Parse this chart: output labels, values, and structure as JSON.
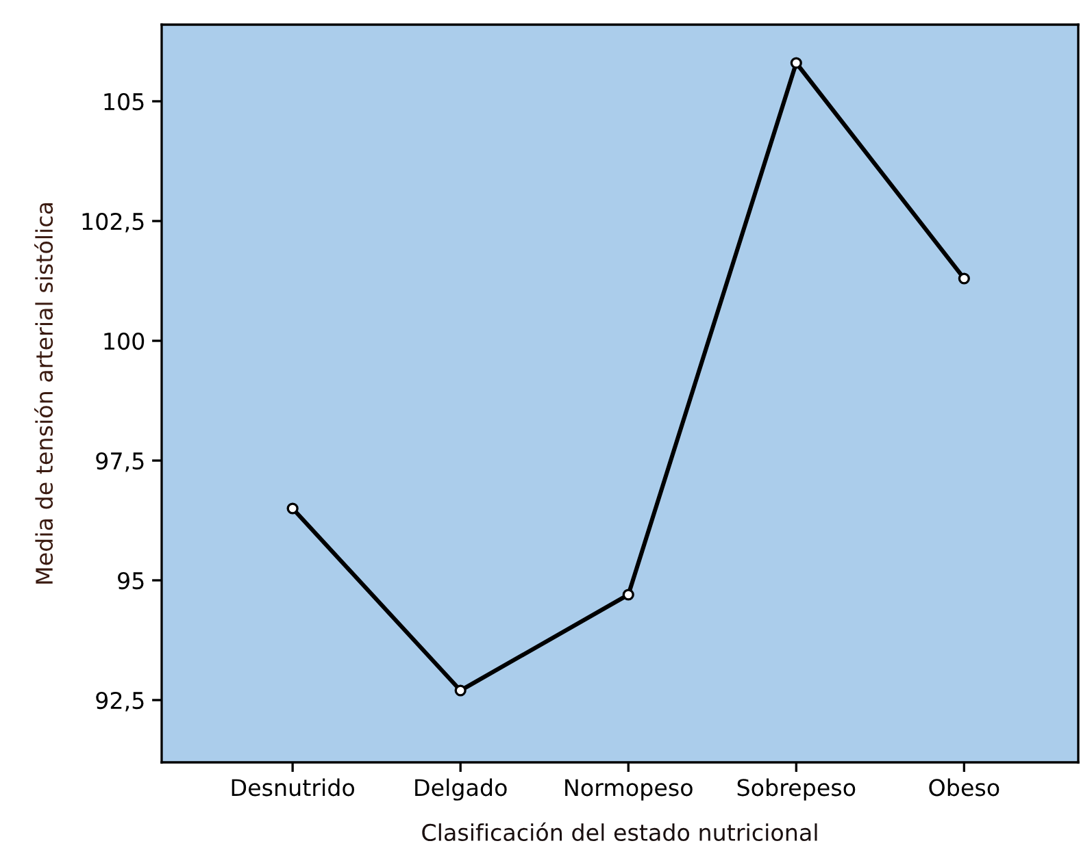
{
  "chart_data": {
    "type": "line",
    "xlabel": "Clasificación del estado nutricional",
    "ylabel": "Media de tensión arterial sistólica",
    "categories": [
      "Desnutrido",
      "Delgado",
      "Normopeso",
      "Sobrepeso",
      "Obeso"
    ],
    "series": [
      {
        "color": "#000000",
        "values": [
          96.5,
          92.7,
          94.7,
          105.8,
          101.3
        ]
      }
    ],
    "ylim": [
      91.2,
      106.6
    ],
    "yticks": [
      {
        "value": 92.5,
        "label": "92,5"
      },
      {
        "value": 95,
        "label": "95"
      },
      {
        "value": 97.5,
        "label": "97,5"
      },
      {
        "value": 100,
        "label": "100"
      },
      {
        "value": 102.5,
        "label": "102,5"
      },
      {
        "value": 105,
        "label": "105"
      }
    ],
    "grid": false,
    "legend": false,
    "marker": "circle",
    "line_style": "solid"
  }
}
